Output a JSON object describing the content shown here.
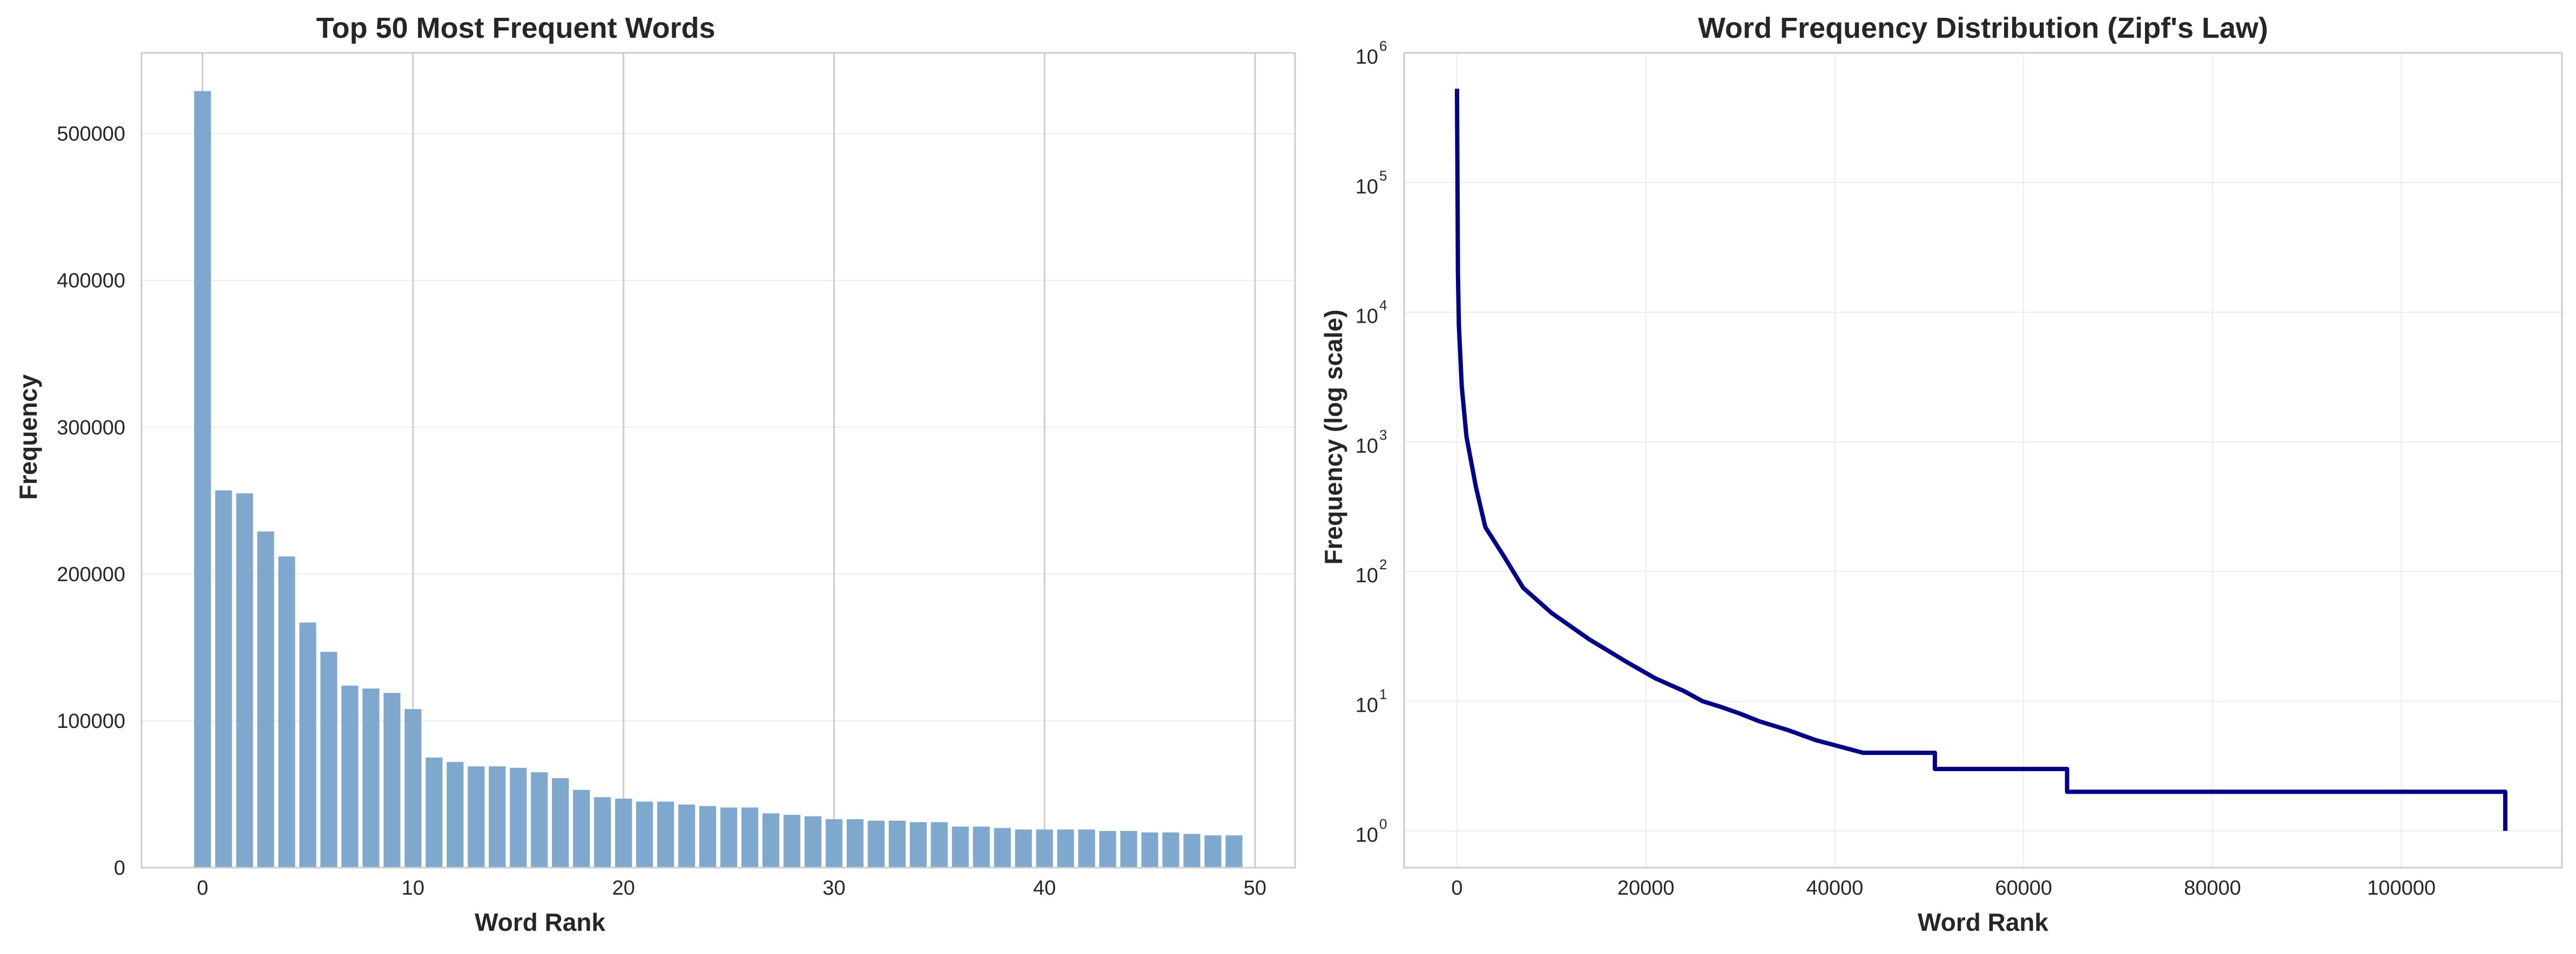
{
  "colors": {
    "bar": "#7ea8cd",
    "line": "#00008b",
    "grid_major": "#cccccc",
    "grid_minor": "#ececec",
    "spine": "#cccccc",
    "text": "#262626"
  },
  "chart_data": [
    {
      "type": "bar",
      "title": "Top 50 Most Frequent Words",
      "xlabel": "Word Rank",
      "ylabel": "Frequency",
      "x_ticks": [
        "0",
        "10",
        "20",
        "30",
        "40",
        "50"
      ],
      "y_ticks": [
        "0",
        "100000",
        "200000",
        "300000",
        "400000",
        "500000"
      ],
      "xlim": [
        -2.9,
        51.9
      ],
      "ylim": [
        0,
        555000
      ],
      "grid": "both",
      "categories": [
        0,
        1,
        2,
        3,
        4,
        5,
        6,
        7,
        8,
        9,
        10,
        11,
        12,
        13,
        14,
        15,
        16,
        17,
        18,
        19,
        20,
        21,
        22,
        23,
        24,
        25,
        26,
        27,
        28,
        29,
        30,
        31,
        32,
        33,
        34,
        35,
        36,
        37,
        38,
        39,
        40,
        41,
        42,
        43,
        44,
        45,
        46,
        47,
        48,
        49
      ],
      "values": [
        529000,
        257000,
        255000,
        229000,
        212000,
        167000,
        147000,
        124000,
        122000,
        119000,
        108000,
        75000,
        72000,
        69000,
        69000,
        68000,
        65000,
        61000,
        53000,
        48000,
        47000,
        45000,
        45000,
        43000,
        42000,
        41000,
        41000,
        37000,
        36000,
        35000,
        33000,
        33000,
        32000,
        32000,
        31000,
        31000,
        28000,
        28000,
        27000,
        26000,
        26000,
        26000,
        26000,
        25000,
        25000,
        24000,
        24000,
        23000,
        22000,
        22000
      ]
    },
    {
      "type": "line",
      "title": "Word Frequency Distribution (Zipf's Law)",
      "xlabel": "Word Rank",
      "ylabel": "Frequency (log scale)",
      "yscale": "log",
      "x_ticks": [
        "0",
        "20000",
        "40000",
        "60000",
        "80000",
        "100000"
      ],
      "y_tick_exponents": [
        "0",
        "1",
        "2",
        "3",
        "4",
        "5",
        "6"
      ],
      "y_tick_base": "10",
      "xlim": [
        -5600,
        117000
      ],
      "ylim": [
        0.52,
        1000000
      ],
      "grid": "both",
      "series": [
        {
          "x": [
            0,
            100,
            200,
            500,
            1000,
            2000,
            3000,
            5000,
            7000,
            10000,
            14000,
            18000,
            21000,
            24000,
            26000,
            28000,
            30000,
            32000,
            35000,
            38000,
            43000,
            50600,
            64600,
            111000
          ],
          "y": [
            529000,
            20000,
            8000,
            2700,
            1100,
            450,
            220,
            130,
            75,
            48,
            30,
            20,
            15,
            12,
            10,
            9,
            8,
            7,
            6,
            5,
            4,
            3,
            2,
            1
          ],
          "step_from": 20
        }
      ]
    }
  ]
}
